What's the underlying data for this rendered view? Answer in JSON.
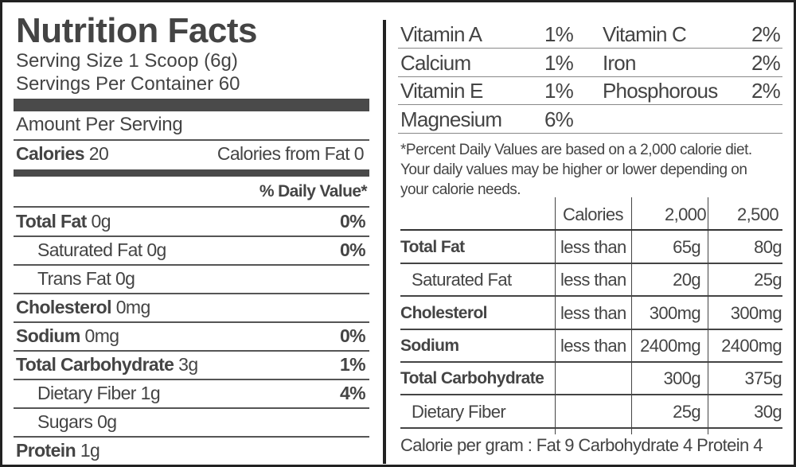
{
  "title": "Nutrition Facts",
  "serving_size": "Serving Size 1 Scoop (6g)",
  "servings_per_container": "Servings Per Container 60",
  "amount_per_serving": "Amount Per Serving",
  "calories": {
    "label": "Calories",
    "value": " 20",
    "from_fat": "Calories from Fat 0"
  },
  "daily_value_header": "% Daily Value*",
  "nutrients": [
    {
      "name": "Total Fat",
      "amount": " 0g",
      "dv": "0%",
      "bold": true,
      "indent": false
    },
    {
      "name": "Saturated Fat",
      "amount": " 0g",
      "dv": "0%",
      "bold": false,
      "indent": true
    },
    {
      "name": "Trans Fat",
      "amount": " 0g",
      "dv": "",
      "bold": false,
      "indent": true
    },
    {
      "name": "Cholesterol",
      "amount": " 0mg",
      "dv": "",
      "bold": true,
      "indent": false
    },
    {
      "name": "Sodium",
      "amount": " 0mg",
      "dv": "0%",
      "bold": true,
      "indent": false
    },
    {
      "name": "Total Carbohydrate",
      "amount": " 3g",
      "dv": "1%",
      "bold": true,
      "indent": false
    },
    {
      "name": "Dietary Fiber",
      "amount": " 1g",
      "dv": "4%",
      "bold": false,
      "indent": true
    },
    {
      "name": "Sugars",
      "amount": " 0g",
      "dv": "",
      "bold": false,
      "indent": true
    },
    {
      "name": "Protein",
      "amount": " 1g",
      "dv": "",
      "bold": true,
      "indent": false
    }
  ],
  "vitamins": [
    [
      {
        "name": "Vitamin A",
        "dv": "1%"
      },
      {
        "name": "Vitamin C",
        "dv": "2%"
      }
    ],
    [
      {
        "name": "Calcium",
        "dv": "1%"
      },
      {
        "name": "Iron",
        "dv": "2%"
      }
    ],
    [
      {
        "name": "Vitamin E",
        "dv": "1%"
      },
      {
        "name": "Phosphorous",
        "dv": "2%"
      }
    ],
    [
      {
        "name": "Magnesium",
        "dv": "6%"
      }
    ]
  ],
  "footnote": [
    "*Percent Daily Values are based on a 2,000 calorie diet.",
    "Your daily values may be higher or lower depending on",
    "your calorie needs."
  ],
  "reference_table": {
    "header": [
      "",
      "Calories",
      "2,000",
      "2,500"
    ],
    "rows": [
      {
        "name": "Total Fat",
        "qualifier": "less than",
        "v2000": "65g",
        "v2500": "80g",
        "bold": true
      },
      {
        "name": "Saturated Fat",
        "qualifier": "less than",
        "v2000": "20g",
        "v2500": "25g",
        "bold": false
      },
      {
        "name": "Cholesterol",
        "qualifier": "less than",
        "v2000": "300mg",
        "v2500": "300mg",
        "bold": true
      },
      {
        "name": "Sodium",
        "qualifier": "less than",
        "v2000": "2400mg",
        "v2500": "2400mg",
        "bold": true
      },
      {
        "name": "Total Carbohydrate",
        "qualifier": "",
        "v2000": "300g",
        "v2500": "375g",
        "bold": true
      },
      {
        "name": "Dietary Fiber",
        "qualifier": "",
        "v2000": "25g",
        "v2500": "30g",
        "bold": false
      }
    ]
  },
  "calorie_per_gram": "Calorie per gram : Fat 9  Carbohydrate 4  Protein 4"
}
